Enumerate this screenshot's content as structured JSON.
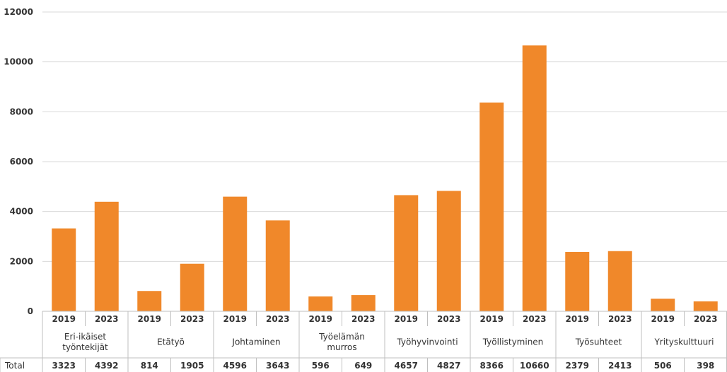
{
  "chart_data": {
    "type": "bar",
    "title": "",
    "xlabel": "",
    "ylabel": "",
    "ylim": [
      0,
      12000
    ],
    "y_ticks": [
      0,
      2000,
      4000,
      6000,
      8000,
      10000,
      12000
    ],
    "grid": true,
    "legend": "none",
    "bar_color": "#f0882a",
    "table_row_label": "Total",
    "groups": [
      {
        "label": "Eri-ikäiset työntekijät",
        "label_lines": [
          "Eri-ikäiset",
          "työntekijät"
        ],
        "years": [
          "2019",
          "2023"
        ],
        "values": [
          3323,
          4392
        ]
      },
      {
        "label": "Etätyö",
        "label_lines": [
          "Etätyö"
        ],
        "years": [
          "2019",
          "2023"
        ],
        "values": [
          814,
          1905
        ]
      },
      {
        "label": "Johtaminen",
        "label_lines": [
          "Johtaminen"
        ],
        "years": [
          "2019",
          "2023"
        ],
        "values": [
          4596,
          3643
        ]
      },
      {
        "label": "Työelämän murros",
        "label_lines": [
          "Työelämän",
          "murros"
        ],
        "years": [
          "2019",
          "2023"
        ],
        "values": [
          596,
          649
        ]
      },
      {
        "label": "Työhyvinvointi",
        "label_lines": [
          "Työhyvinvointi"
        ],
        "years": [
          "2019",
          "2023"
        ],
        "values": [
          4657,
          4827
        ]
      },
      {
        "label": "Työllistyminen",
        "label_lines": [
          "Työllistyminen"
        ],
        "years": [
          "2019",
          "2023"
        ],
        "values": [
          8366,
          10660
        ]
      },
      {
        "label": "Työsuhteet",
        "label_lines": [
          "Työsuhteet"
        ],
        "years": [
          "2019",
          "2023"
        ],
        "values": [
          2379,
          2413
        ]
      },
      {
        "label": "Yrityskulttuuri",
        "label_lines": [
          "Yrityskulttuuri"
        ],
        "years": [
          "2019",
          "2023"
        ],
        "values": [
          506,
          398
        ]
      }
    ]
  }
}
